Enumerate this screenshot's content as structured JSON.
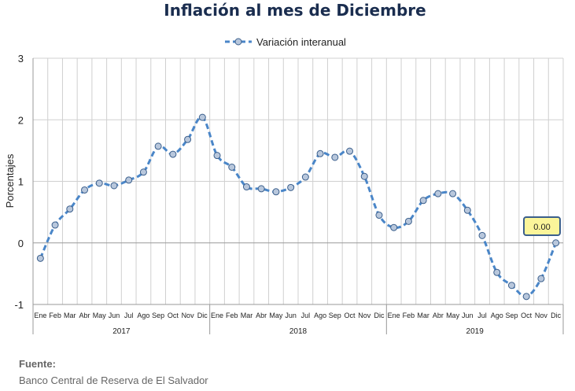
{
  "chart_data": {
    "type": "line",
    "title": "Inflación al mes de Diciembre",
    "ylabel": "Porcentajes",
    "ylim": [
      -1,
      3
    ],
    "yticks": [
      "3",
      "2",
      "1",
      "0",
      "-1"
    ],
    "yticks_values": [
      3,
      2,
      1,
      0,
      -1
    ],
    "grid": true,
    "legend_position": "top-center",
    "months": [
      "Ene",
      "Feb",
      "Mar",
      "Abr",
      "May",
      "Jun",
      "Jul",
      "Ago",
      "Sep",
      "Oct",
      "Nov",
      "Dic",
      "Ene",
      "Feb",
      "Mar",
      "Abr",
      "May",
      "Jun",
      "Jul",
      "Ago",
      "Sep",
      "Oct",
      "Nov",
      "Dic",
      "Ene",
      "Feb",
      "Mar",
      "Abr",
      "May",
      "Jun",
      "Jul",
      "Ago",
      "Sep",
      "Oct",
      "Nov",
      "Dic"
    ],
    "years": [
      "2017",
      "2018",
      "2019"
    ],
    "series": [
      {
        "name": "Variación interanual",
        "color": "#4a86c8",
        "values": [
          -0.25,
          0.29,
          0.55,
          0.86,
          0.97,
          0.93,
          1.02,
          1.15,
          1.57,
          1.44,
          1.68,
          2.04,
          1.42,
          1.23,
          0.91,
          0.88,
          0.83,
          0.9,
          1.07,
          1.45,
          1.39,
          1.49,
          1.08,
          0.45,
          0.25,
          0.35,
          0.69,
          0.8,
          0.8,
          0.53,
          0.12,
          -0.48,
          -0.69,
          -0.87,
          -0.58,
          0.0
        ]
      }
    ],
    "callout": "0.00"
  },
  "source": {
    "title": "Fuente:",
    "text": "Banco Central de Reserva de El Salvador"
  }
}
